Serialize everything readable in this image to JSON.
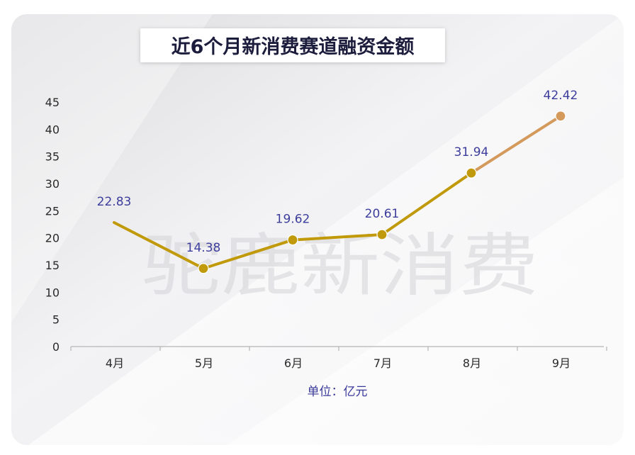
{
  "colors": {
    "line_main": "#c19a0b",
    "line_last": "#d49a5c",
    "point_last": "#d49a5c",
    "axis": "#b5b5b5"
  },
  "watermark": {
    "text": "驼鹿新消费"
  },
  "chart_data": {
    "type": "line",
    "title": "近6个月新消费赛道融资金额",
    "xlabel": "单位：亿元",
    "ylabel": "",
    "categories": [
      "4月",
      "5月",
      "6月",
      "7月",
      "8月",
      "9月"
    ],
    "values": [
      22.83,
      14.38,
      19.62,
      20.61,
      31.94,
      42.42
    ],
    "data_labels": [
      "22.83",
      "14.38",
      "19.62",
      "20.61",
      "31.94",
      "42.42"
    ],
    "ylim": [
      0,
      45
    ],
    "yticks": [
      0,
      5,
      10,
      15,
      20,
      25,
      30,
      35,
      40,
      45
    ],
    "grid": false,
    "legend": "none"
  }
}
